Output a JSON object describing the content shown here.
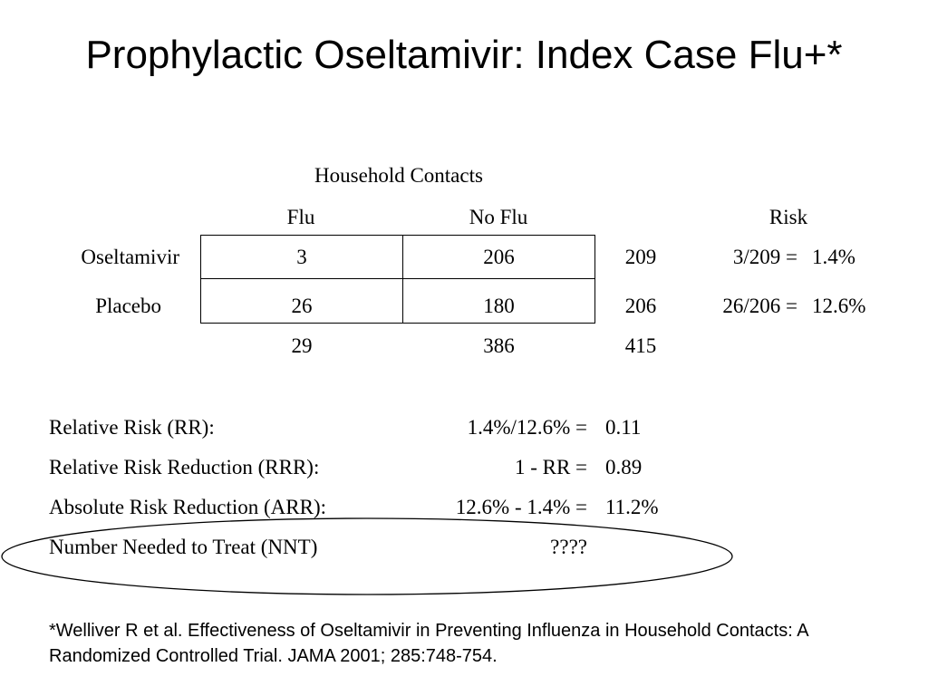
{
  "title": "Prophylactic Oseltamivir: Index Case Flu+*",
  "table": {
    "group_header": "Household Contacts",
    "col_flu": "Flu",
    "col_noflu": "No Flu",
    "col_risk": "Risk",
    "rows": [
      {
        "label": "Oseltamivir",
        "flu": "3",
        "noflu": "206",
        "total": "209",
        "risk_frac": "3/209 =",
        "risk_pct": "1.4%"
      },
      {
        "label": "Placebo",
        "flu": "26",
        "noflu": "180",
        "total": "206",
        "risk_frac": "26/206 =",
        "risk_pct": "12.6%"
      }
    ],
    "totals": {
      "flu": "29",
      "noflu": "386",
      "total": "415"
    }
  },
  "measures": [
    {
      "label": "Relative Risk (RR):",
      "formula": "1.4%/12.6% =",
      "value": "0.11"
    },
    {
      "label": "Relative Risk Reduction (RRR):",
      "formula": "1 - RR =",
      "value": "0.89"
    },
    {
      "label": "Absolute Risk Reduction (ARR):",
      "formula": "12.6% - 1.4% =",
      "value": "11.2%"
    },
    {
      "label": "Number Needed to Treat (NNT)",
      "formula": "????",
      "value": ""
    }
  ],
  "footnote": "*Welliver R et al. Effectiveness of Oseltamivir in Preventing Influenza in Household Contacts: A Randomized Controlled Trial. JAMA 2001; 285:748-754."
}
